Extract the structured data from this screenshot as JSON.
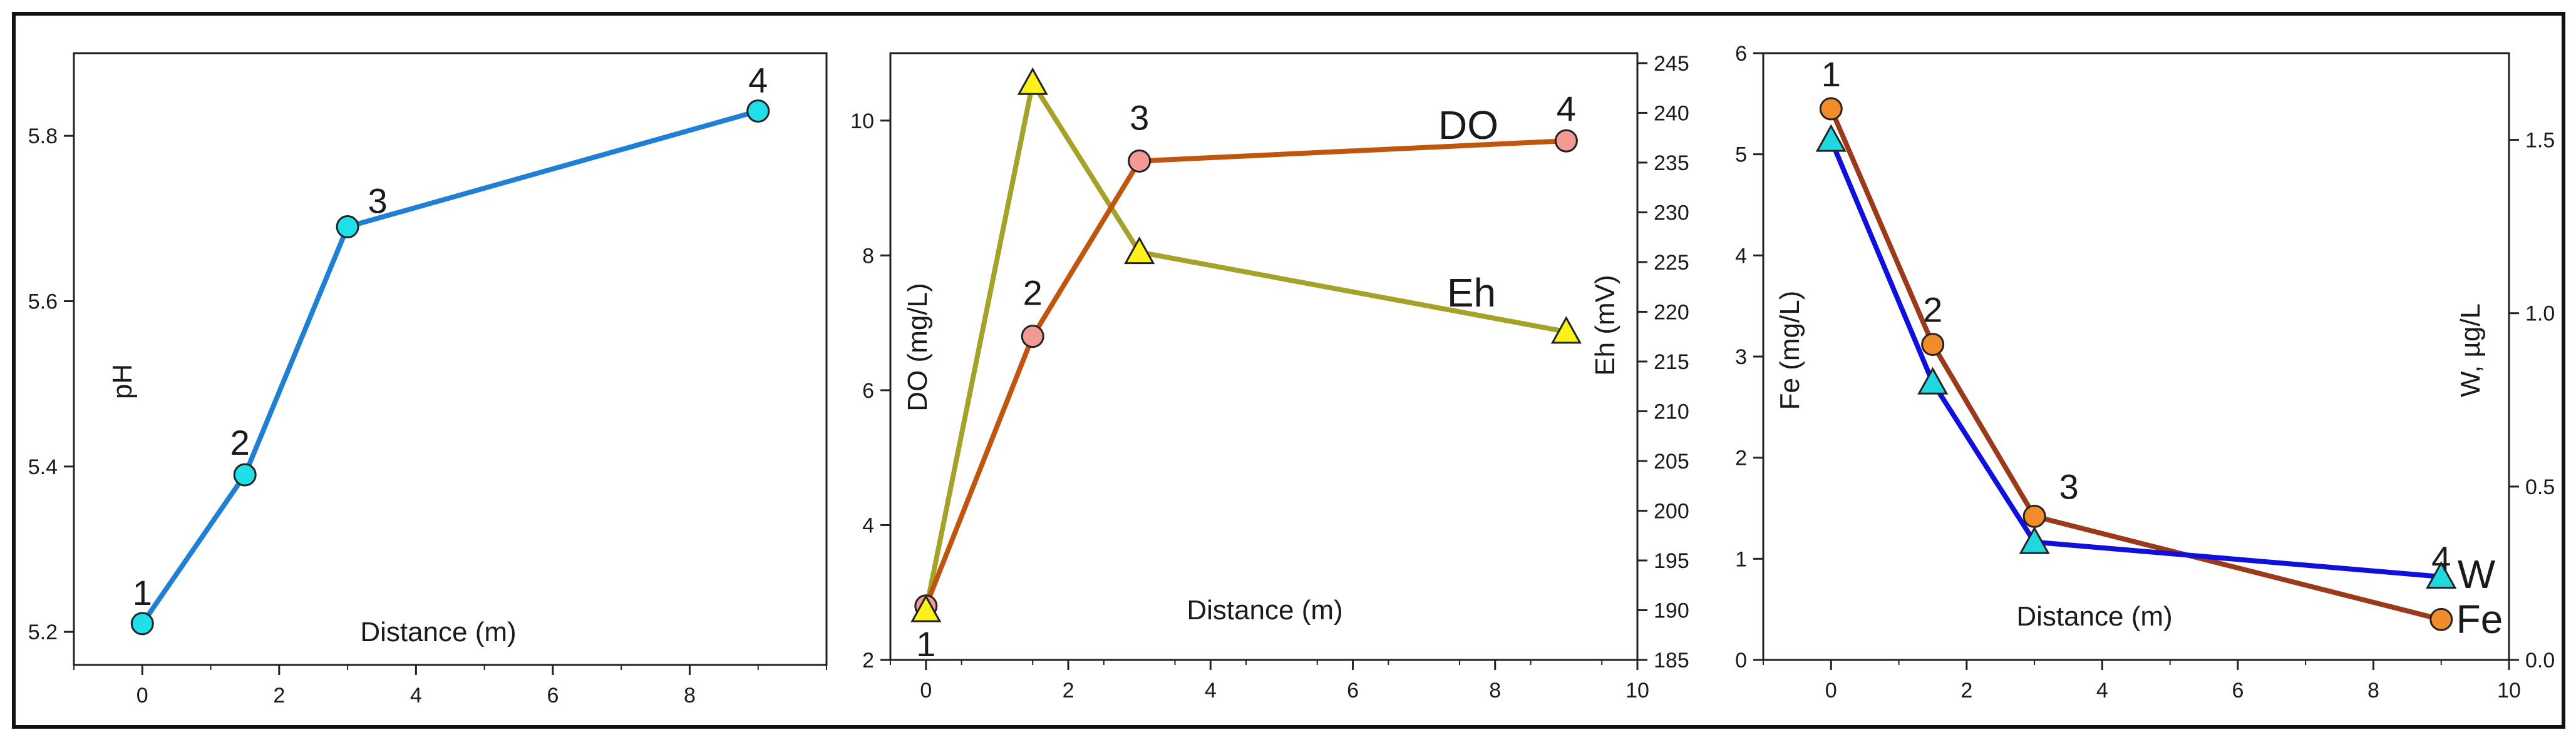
{
  "colors": {
    "ph_line": "#1f7fd4",
    "ph_marker": "#1fe0e8",
    "do_line": "#c0560e",
    "do_marker": "#f29a93",
    "eh_line": "#a5a22a",
    "eh_marker": "#fbf21a",
    "fe_line": "#9a3a1b",
    "fe_marker": "#f08c2a",
    "w_line": "#1010dd",
    "w_marker": "#20d8e0"
  },
  "chart_data": [
    {
      "type": "line",
      "id": "ph",
      "xlabel": "Distance (m)",
      "ylabel": "pH",
      "xlim": [
        -1,
        10
      ],
      "ylim": [
        5.16,
        5.9
      ],
      "x_ticks": [
        0,
        2,
        4,
        6,
        8
      ],
      "x_tick_labels": [
        "0",
        "2",
        "4",
        "6",
        "8"
      ],
      "y_ticks": [
        5.2,
        5.4,
        5.6,
        5.8
      ],
      "y_tick_labels": [
        "5.2",
        "5.4",
        "5.6",
        "5.8"
      ],
      "series": [
        {
          "name": "pH",
          "x": [
            0,
            1.5,
            3,
            9
          ],
          "values": [
            5.21,
            5.39,
            5.69,
            5.83
          ],
          "marker": "circle"
        }
      ],
      "point_labels": [
        "1",
        "2",
        "3",
        "4"
      ]
    },
    {
      "type": "line",
      "id": "do_eh",
      "xlabel": "Distance (m)",
      "ylabel": "DO (mg/L)",
      "y2label": "Eh (mV)",
      "xlim": [
        -0.5,
        10
      ],
      "ylim": [
        2,
        11
      ],
      "y2lim": [
        185,
        246
      ],
      "x_ticks": [
        0,
        2,
        4,
        6,
        8,
        10
      ],
      "x_tick_labels": [
        "0",
        "2",
        "4",
        "6",
        "8",
        "10"
      ],
      "y_ticks": [
        2,
        4,
        6,
        8,
        10
      ],
      "y_tick_labels": [
        "2",
        "4",
        "6",
        "8",
        "10"
      ],
      "y2_ticks": [
        185,
        190,
        195,
        200,
        205,
        210,
        215,
        220,
        225,
        230,
        235,
        240,
        245
      ],
      "y2_tick_labels": [
        "185",
        "190",
        "195",
        "200",
        "205",
        "210",
        "215",
        "220",
        "225",
        "230",
        "235",
        "240",
        "245"
      ],
      "series": [
        {
          "name": "DO",
          "axis": "y",
          "x": [
            0,
            1.5,
            3,
            9
          ],
          "values": [
            2.8,
            6.8,
            9.4,
            9.7
          ],
          "marker": "circle"
        },
        {
          "name": "Eh",
          "axis": "y2",
          "x": [
            0,
            1.5,
            3,
            9
          ],
          "values": [
            190,
            243,
            226,
            218
          ],
          "marker": "triangle"
        }
      ],
      "point_labels": [
        "1",
        "2",
        "3",
        "4"
      ],
      "series_labels": [
        "DO",
        "Eh"
      ]
    },
    {
      "type": "line",
      "id": "fe_w",
      "xlabel": "Distance (m)",
      "ylabel": "Fe (mg/L)",
      "y2label": "W, µg/L",
      "xlim": [
        -1,
        10
      ],
      "ylim": [
        0,
        6
      ],
      "y2lim": [
        0,
        1.75
      ],
      "x_ticks": [
        0,
        2,
        4,
        6,
        8,
        10
      ],
      "x_tick_labels": [
        "0",
        "2",
        "4",
        "6",
        "8",
        "10"
      ],
      "y_ticks": [
        0,
        1,
        2,
        3,
        4,
        5,
        6
      ],
      "y_tick_labels": [
        "0",
        "1",
        "2",
        "3",
        "4",
        "5",
        "6"
      ],
      "y2_ticks": [
        0,
        0.5,
        1.0,
        1.5
      ],
      "y2_tick_labels": [
        "0.0",
        "0.5",
        "1.0",
        "1.5"
      ],
      "series": [
        {
          "name": "Fe",
          "axis": "y",
          "x": [
            0,
            1.5,
            3,
            9
          ],
          "values": [
            5.45,
            3.12,
            1.42,
            0.4
          ],
          "marker": "circle"
        },
        {
          "name": "W",
          "axis": "y2",
          "x": [
            0,
            1.5,
            3,
            9
          ],
          "values": [
            1.5,
            0.8,
            0.34,
            0.24
          ],
          "marker": "triangle"
        }
      ],
      "point_labels": [
        "1",
        "2",
        "3",
        "4"
      ],
      "series_labels": [
        "W",
        "Fe"
      ]
    }
  ]
}
